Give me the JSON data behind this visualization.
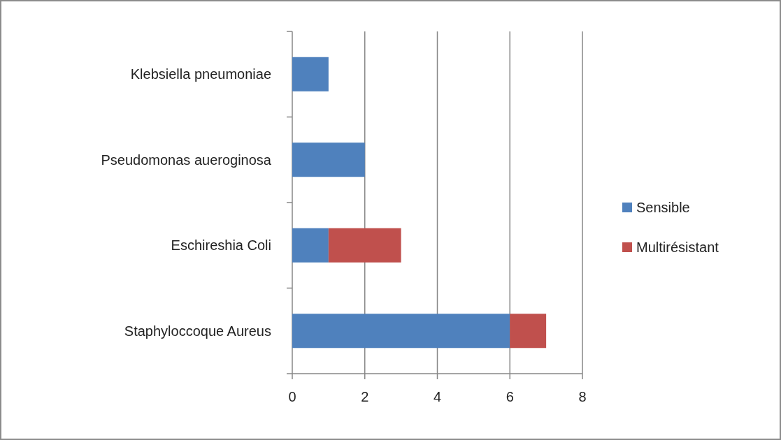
{
  "chart_data": {
    "type": "bar",
    "orientation": "horizontal",
    "stacked": true,
    "categories": [
      "Klebsiella pneumoniae",
      "Pseudomonas aueroginosa",
      "Eschireshia Coli",
      "Staphyloccoque Aureus"
    ],
    "series": [
      {
        "name": "Sensible",
        "color": "#4f81bd",
        "values": [
          1,
          2,
          1,
          6
        ]
      },
      {
        "name": "Multirésistant",
        "color": "#c0504d",
        "values": [
          0,
          0,
          2,
          1
        ]
      }
    ],
    "xlim": [
      0,
      8
    ],
    "xticks": [
      0,
      2,
      4,
      6,
      8
    ],
    "grid": "x",
    "legend": "right"
  }
}
